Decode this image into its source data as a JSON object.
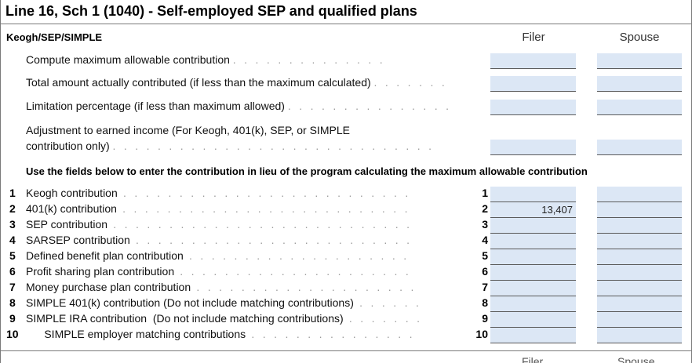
{
  "form": {
    "title": "Line 16, Sch 1 (1040) - Self-employed SEP and qualified plans",
    "section": "Keogh/SEP/SIMPLE",
    "col_filer": "Filer",
    "col_spouse": "Spouse"
  },
  "top_rows": [
    {
      "label": "Compute maximum allowable contribution",
      "filer": "",
      "spouse": ""
    },
    {
      "label": "Total amount actually contributed (if less than the maximum calculated)",
      "filer": "",
      "spouse": ""
    },
    {
      "label": "Limitation percentage (if less than maximum allowed)",
      "filer": "",
      "spouse": ""
    },
    {
      "label_line1": "Adjustment to earned income (For Keogh, 401(k), SEP, or SIMPLE",
      "label_line2": "contribution only)",
      "filer": "",
      "spouse": ""
    }
  ],
  "note": "Use the fields below to enter the contribution in lieu of the program calculating the maximum allowable contribution",
  "contrib_rows": [
    {
      "num": "1",
      "label": "Keogh contribution",
      "line": "1",
      "filer": "",
      "spouse": ""
    },
    {
      "num": "2",
      "label": "401(k) contribution",
      "line": "2",
      "filer": "13,407",
      "spouse": ""
    },
    {
      "num": "3",
      "label": "SEP contribution",
      "line": "3",
      "filer": "",
      "spouse": ""
    },
    {
      "num": "4",
      "label": "SARSEP contribution",
      "line": "4",
      "filer": "",
      "spouse": ""
    },
    {
      "num": "5",
      "label": "Defined benefit plan contribution",
      "line": "5",
      "filer": "",
      "spouse": ""
    },
    {
      "num": "6",
      "label": "Profit sharing plan contribution",
      "line": "6",
      "filer": "",
      "spouse": ""
    },
    {
      "num": "7",
      "label": "Money purchase plan contribution",
      "line": "7",
      "filer": "",
      "spouse": ""
    },
    {
      "num": "8",
      "label": "SIMPLE 401(k) contribution (Do not include matching contributions)",
      "line": "8",
      "filer": "",
      "spouse": ""
    },
    {
      "num": "9",
      "label": "SIMPLE IRA contribution  (Do not include matching contributions)",
      "line": "9",
      "filer": "",
      "spouse": ""
    },
    {
      "num": "10",
      "label": "      SIMPLE employer matching contributions",
      "line": "10",
      "filer": "",
      "spouse": ""
    }
  ],
  "bottom_peek": {
    "filer": "Filer",
    "spouse": "Spouse"
  }
}
